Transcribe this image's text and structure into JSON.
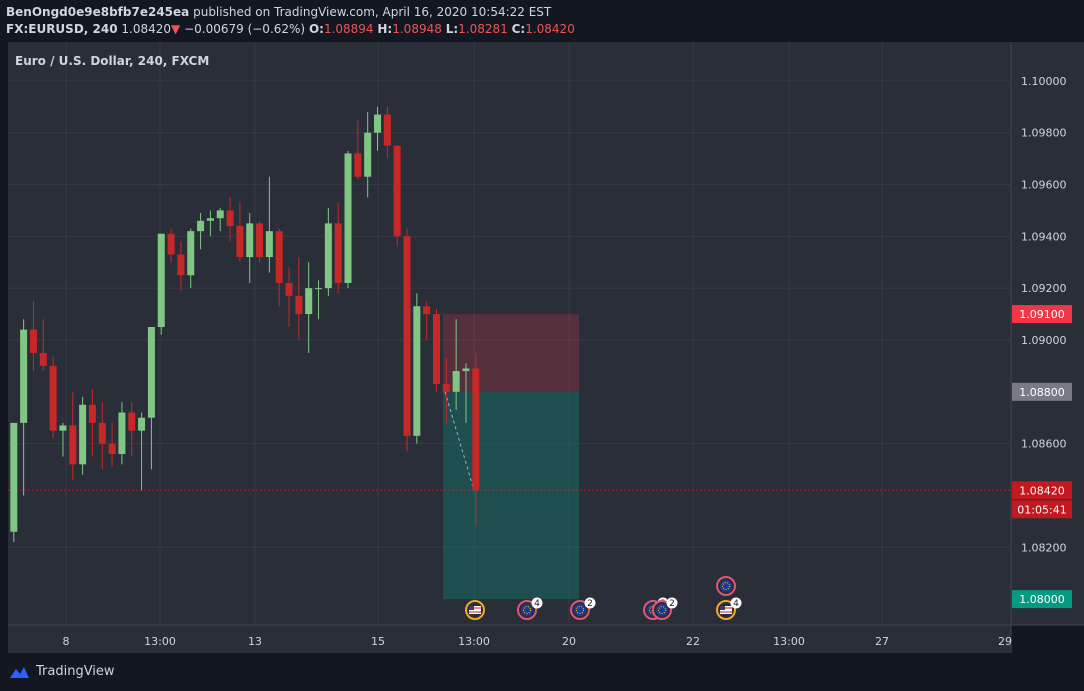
{
  "header": {
    "author": "BenOngd0e9e8bfb7e245ea",
    "published_text": "published on TradingView.com, April 16, 2020 10:54:22 EST",
    "symbol": "FX:EURUSD, 240",
    "last": "1.08420",
    "change": "−0.00679 (−0.62%)",
    "o_label": "O:",
    "o_value": "1.08894",
    "h_label": "H:",
    "h_value": "1.08948",
    "l_label": "L:",
    "l_value": "1.08281",
    "c_label": "C:",
    "c_value": "1.08420"
  },
  "chart_data": {
    "type": "candlestick",
    "title": "Euro / U.S. Dollar, 240, FXCM",
    "ylim": [
      1.079,
      1.1015
    ],
    "y_ticks": [
      "1.10000",
      "1.09800",
      "1.09600",
      "1.09400",
      "1.09200",
      "1.09000",
      "1.08600",
      "1.08200"
    ],
    "x_ticks": [
      "8",
      "13:00",
      "13",
      "15",
      "13:00",
      "20",
      "22",
      "13:00",
      "27",
      "29"
    ],
    "price_badges": [
      {
        "label": "1.09100",
        "color": "#f23645"
      },
      {
        "label": "1.08800",
        "color": "#787b86"
      },
      {
        "label": "1.08420",
        "color": "#c2181f"
      },
      {
        "label": "01:05:41",
        "color": "#c2181f"
      },
      {
        "label": "1.08000",
        "color": "#089981"
      }
    ],
    "position": {
      "type": "short",
      "entry": 1.088,
      "stop": 1.091,
      "target": 1.08
    },
    "candles": [
      [
        1.0826,
        1.0868,
        1.0822,
        1.0868
      ],
      [
        1.0868,
        1.0908,
        1.084,
        1.0904
      ],
      [
        1.0904,
        1.0915,
        1.0888,
        1.0895
      ],
      [
        1.0895,
        1.0908,
        1.0888,
        1.089
      ],
      [
        1.089,
        1.0894,
        1.0862,
        1.0865
      ],
      [
        1.0865,
        1.0868,
        1.0855,
        1.0867
      ],
      [
        1.0867,
        1.088,
        1.0846,
        1.0852
      ],
      [
        1.0852,
        1.0878,
        1.0848,
        1.0875
      ],
      [
        1.0875,
        1.0881,
        1.0855,
        1.0868
      ],
      [
        1.0868,
        1.0876,
        1.085,
        1.086
      ],
      [
        1.086,
        1.0868,
        1.0851,
        1.0856
      ],
      [
        1.0856,
        1.0876,
        1.0852,
        1.0872
      ],
      [
        1.0872,
        1.0876,
        1.0855,
        1.0865
      ],
      [
        1.0865,
        1.0872,
        1.0842,
        1.087
      ],
      [
        1.087,
        1.0905,
        1.085,
        1.0905
      ],
      [
        1.0905,
        1.0941,
        1.0902,
        1.0941
      ],
      [
        1.0941,
        1.0943,
        1.093,
        1.0933
      ],
      [
        1.0933,
        1.0938,
        1.0919,
        1.0925
      ],
      [
        1.0925,
        1.0943,
        1.092,
        1.0942
      ],
      [
        1.0942,
        1.0949,
        1.0935,
        1.0946
      ],
      [
        1.0946,
        1.095,
        1.094,
        1.0947
      ],
      [
        1.0947,
        1.0951,
        1.0942,
        1.095
      ],
      [
        1.095,
        1.0955,
        1.0938,
        1.0944
      ],
      [
        1.0944,
        1.0953,
        1.093,
        1.0932
      ],
      [
        1.0932,
        1.0949,
        1.0922,
        1.0945
      ],
      [
        1.0945,
        1.0946,
        1.093,
        1.0932
      ],
      [
        1.0932,
        1.0963,
        1.0926,
        1.0942
      ],
      [
        1.0942,
        1.0943,
        1.0913,
        1.0922
      ],
      [
        1.0922,
        1.0928,
        1.0905,
        1.0917
      ],
      [
        1.0917,
        1.0932,
        1.09,
        1.091
      ],
      [
        1.091,
        1.093,
        1.0895,
        1.092
      ],
      [
        1.092,
        1.0923,
        1.0908,
        1.092
      ],
      [
        1.092,
        1.0951,
        1.0917,
        1.0945
      ],
      [
        1.0945,
        1.0953,
        1.0918,
        1.0922
      ],
      [
        1.0922,
        1.0973,
        1.092,
        1.0972
      ],
      [
        1.0972,
        1.0985,
        1.0962,
        1.0963
      ],
      [
        1.0963,
        1.0988,
        1.0955,
        1.098
      ],
      [
        1.098,
        1.099,
        1.0973,
        1.0987
      ],
      [
        1.0987,
        1.099,
        1.097,
        1.0975
      ],
      [
        1.0975,
        1.0975,
        1.0936,
        1.094
      ],
      [
        1.094,
        1.0943,
        1.0857,
        1.0863
      ],
      [
        1.0863,
        1.0918,
        1.086,
        1.0913
      ],
      [
        1.0913,
        1.0915,
        1.09,
        1.091
      ],
      [
        1.091,
        1.0912,
        1.088,
        1.0883
      ],
      [
        1.0883,
        1.0893,
        1.0868,
        1.088
      ],
      [
        1.088,
        1.0908,
        1.0873,
        1.0888
      ],
      [
        1.0888,
        1.0891,
        1.0868,
        1.0889
      ],
      [
        1.0889,
        1.0895,
        1.0828,
        1.0842
      ]
    ]
  },
  "events": [
    {
      "icon": "us-flag-icon"
    },
    {
      "icon": "eu-flag-icon",
      "count": "4"
    },
    {
      "icon": "eu-flag-icon",
      "count": "2"
    },
    {
      "icon": "eu-flag-icon",
      "count": "2"
    },
    {
      "icon": "eu-flag-icon",
      "count": "2"
    },
    {
      "icon": "us-flag-icon",
      "count": "4"
    },
    {
      "icon": "eu-flag-icon"
    }
  ],
  "footer": {
    "brand": "TradingView"
  },
  "colors": {
    "up": "#81c784",
    "down": "#c62828",
    "background": "#131722",
    "panel": "#2a2e39",
    "grid": "#363a45",
    "text": "#d1d4dc"
  }
}
